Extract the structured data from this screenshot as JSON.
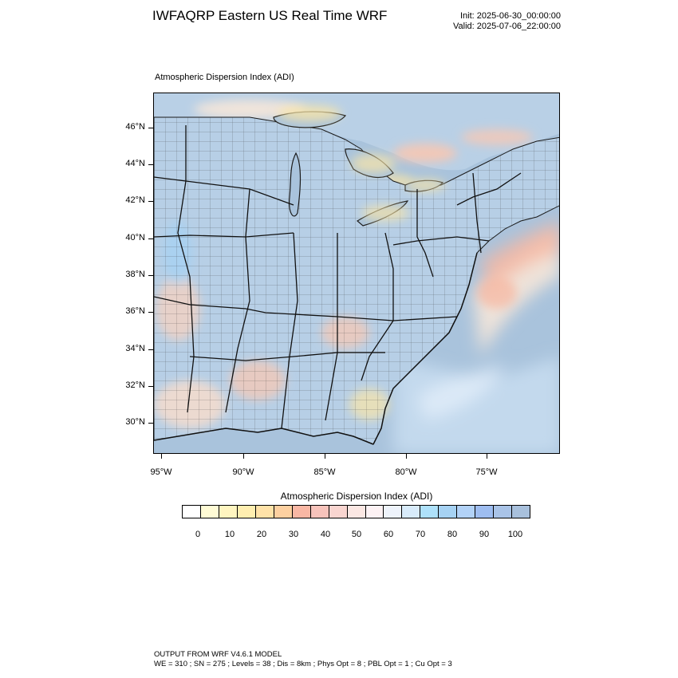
{
  "header": {
    "title": "IWFAQRP Eastern US Real Time WRF",
    "init": "Init: 2025-06-30_00:00:00",
    "valid": "Valid: 2025-07-06_22:00:00"
  },
  "map": {
    "subtitle": "Atmospheric Dispersion Index   (ADI)",
    "lat_labels": [
      "46°N",
      "44°N",
      "42°N",
      "40°N",
      "38°N",
      "36°N",
      "34°N",
      "32°N",
      "30°N"
    ],
    "lon_labels": [
      "95°W",
      "90°W",
      "85°W",
      "80°W",
      "75°W"
    ],
    "colors": {
      "water": "#a9c3dc",
      "land_base": "#b7cfe6",
      "land_warm": "#f3d2c2",
      "land_light": "#f6e7d9",
      "yellow": "#fbe6a6",
      "orange": "#f7b7a0",
      "red": "#ef9a8a",
      "lightblue": "#cfe3f5",
      "boundaries": "#1a1a1a"
    }
  },
  "colorbar": {
    "title": "Atmospheric Dispersion Index  (ADI)",
    "colors": [
      "#ffffff",
      "#fffbd5",
      "#fff5c0",
      "#ffeeb0",
      "#ffe2a8",
      "#fdd0a0",
      "#f9b7a4",
      "#f7c3bb",
      "#f9d5d0",
      "#fbe7e3",
      "#fdf2f4",
      "#eef3fb",
      "#d8ebfa",
      "#aee1fa",
      "#a6d2f3",
      "#b2d2f7",
      "#9ebdf0",
      "#a9c3e7",
      "#a8c0dc"
    ],
    "tick_labels": [
      "0",
      "10",
      "20",
      "30",
      "40",
      "50",
      "60",
      "70",
      "80",
      "90",
      "100"
    ]
  },
  "footer": {
    "line1": "OUTPUT FROM WRF V4.6.1 MODEL",
    "line2": "WE = 310 ; SN = 275 ; Levels = 38 ; Dis = 8km ; Phys Opt = 8 ; PBL Opt = 1 ; Cu Opt = 3"
  }
}
